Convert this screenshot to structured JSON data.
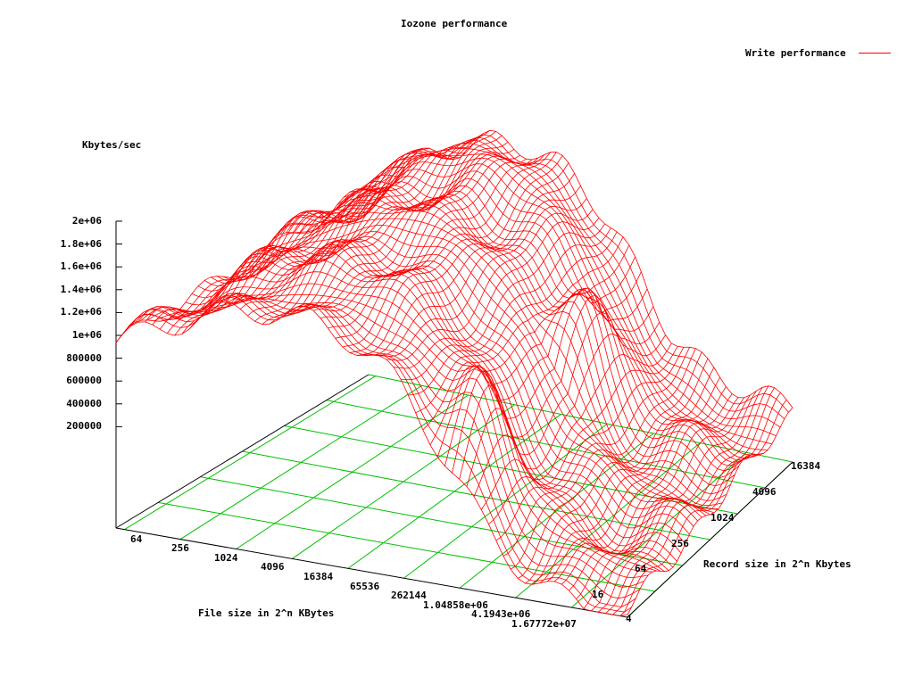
{
  "chart_data": {
    "type": "surface-3d-wireframe",
    "title": "Iozone performance",
    "legend": [
      {
        "label": "Write performance",
        "color": "#ff0000"
      }
    ],
    "zlabel": "Kbytes/sec",
    "xlabel": "File size in 2^n KBytes",
    "ylabel": "Record size in 2^n Kbytes",
    "z_ticks": [
      "2e+06",
      "1.8e+06",
      "1.6e+06",
      "1.4e+06",
      "1.2e+06",
      "1e+06",
      "800000",
      "600000",
      "400000",
      "200000"
    ],
    "z_tick_values": [
      2000000,
      1800000,
      1600000,
      1400000,
      1200000,
      1000000,
      800000,
      600000,
      400000,
      200000
    ],
    "x_ticks": [
      "64",
      "256",
      "1024",
      "4096",
      "16384",
      "65536",
      "262144",
      "1.04858e+06",
      "4.1943e+06",
      "1.67772e+07"
    ],
    "y_ticks": [
      "4",
      "16",
      "64",
      "256",
      "1024",
      "4096",
      "16384"
    ],
    "zlim": [
      0,
      2000000
    ],
    "grid": true,
    "colors": {
      "surface": "#ff0000",
      "grid": "#00c000",
      "axes": "#000000"
    },
    "surface_profile_by_file_size_kbytes": [
      {
        "file_size": "64",
        "approx_kbytes_sec_range": [
          1000000,
          1400000
        ]
      },
      {
        "file_size": "1024",
        "approx_kbytes_sec_range": [
          1300000,
          1700000
        ]
      },
      {
        "file_size": "16384",
        "approx_kbytes_sec_range": [
          1400000,
          2000000
        ]
      },
      {
        "file_size": "262144",
        "approx_kbytes_sec_range": [
          1200000,
          1900000
        ]
      },
      {
        "file_size": "4.1943e+06",
        "approx_kbytes_sec_range": [
          200000,
          1000000
        ]
      },
      {
        "file_size": "1.67772e+07",
        "approx_kbytes_sec_range": [
          50000,
          600000
        ]
      }
    ]
  },
  "labels": {
    "title": "Iozone performance",
    "legend_label": "Write performance",
    "zlabel": "Kbytes/sec",
    "xlabel": "File size in 2^n KBytes",
    "ylabel": "Record size in 2^n Kbytes"
  }
}
